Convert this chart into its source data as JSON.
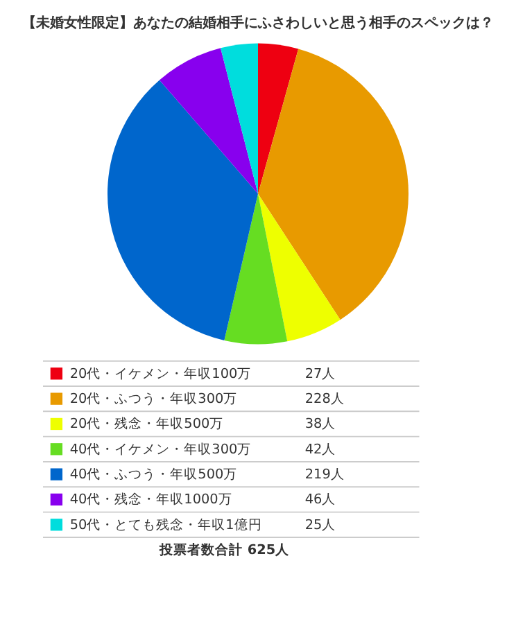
{
  "chart_data": {
    "type": "pie",
    "title": "【未婚女性限定】あなたの結婚相手にふさわしいと思う相手のスペックは？",
    "categories": [
      "20代・イケメン・年収100万",
      "20代・ふつう・年収300万",
      "20代・残念・年収500万",
      "40代・イケメン・年収300万",
      "40代・ふつう・年収500万",
      "40代・残念・年収1000万",
      "50代・とても残念・年収1億円"
    ],
    "values": [
      27,
      228,
      38,
      42,
      219,
      46,
      25
    ],
    "colors": [
      "#ee0011",
      "#e89a00",
      "#eeff00",
      "#66dd22",
      "#0066cc",
      "#8800ee",
      "#00dddd"
    ],
    "value_labels": [
      "27人",
      "228人",
      "38人",
      "42人",
      "219人",
      "46人",
      "25人"
    ],
    "legend": "bottom",
    "annotations": [
      "投票者数合計 625人"
    ]
  }
}
